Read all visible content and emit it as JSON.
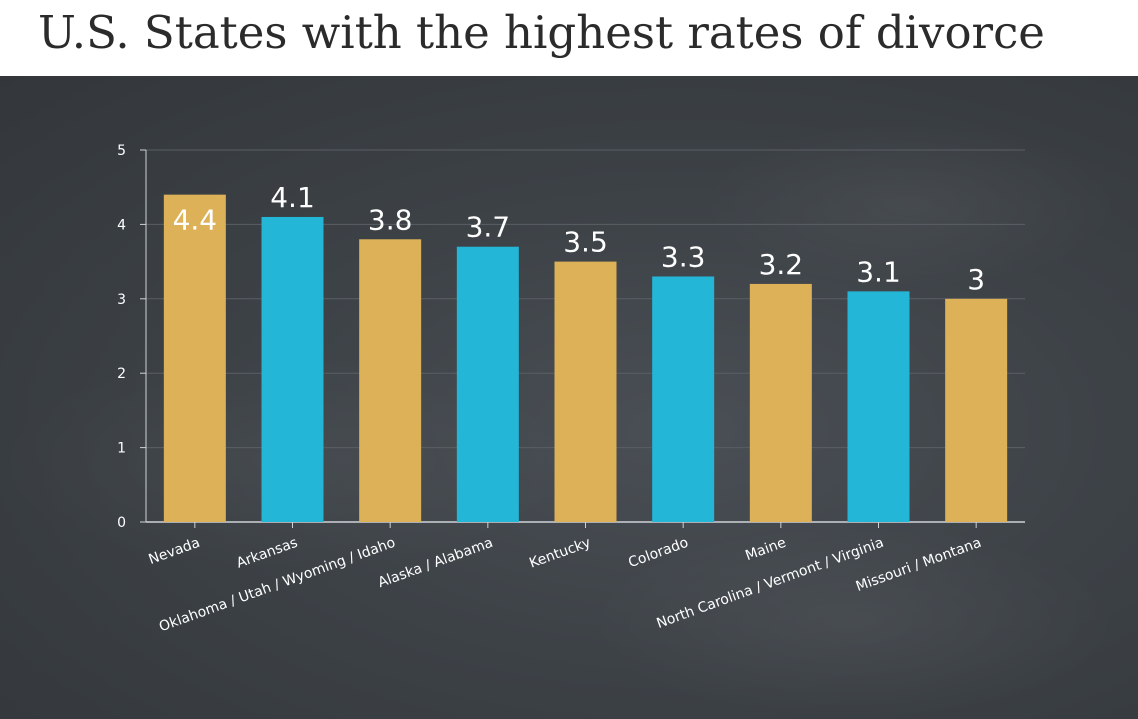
{
  "header": {
    "title": "U.S. States with the highest rates of divorce"
  },
  "colors": {
    "gold": "#DDB158",
    "blue": "#23B6D6",
    "axis": "#cfd2d6",
    "grid": "#5a5f65"
  },
  "chart_data": {
    "type": "bar",
    "title": "U.S. States with the highest rates of divorce",
    "xlabel": "",
    "ylabel": "",
    "ylim": [
      0,
      5
    ],
    "yticks": [
      "0",
      "1",
      "2",
      "3",
      "4",
      "5"
    ],
    "grid": true,
    "legend": "none",
    "categories": [
      "Nevada",
      "Arkansas",
      "Oklahoma / Utah / Wyoming / Idaho",
      "Alaska / Alabama",
      "Kentucky",
      "Colorado",
      "Maine",
      "North Carolina / Vermont / Virginia",
      "Missouri / Montana"
    ],
    "values": [
      4.4,
      4.1,
      3.8,
      3.7,
      3.5,
      3.3,
      3.2,
      3.1,
      3
    ],
    "labels": [
      "4.4",
      "4.1",
      "3.8",
      "3.7",
      "3.5",
      "3.3",
      "3.2",
      "3.1",
      "3"
    ],
    "bar_colors": [
      "gold",
      "blue",
      "gold",
      "blue",
      "gold",
      "blue",
      "gold",
      "blue",
      "gold"
    ]
  }
}
